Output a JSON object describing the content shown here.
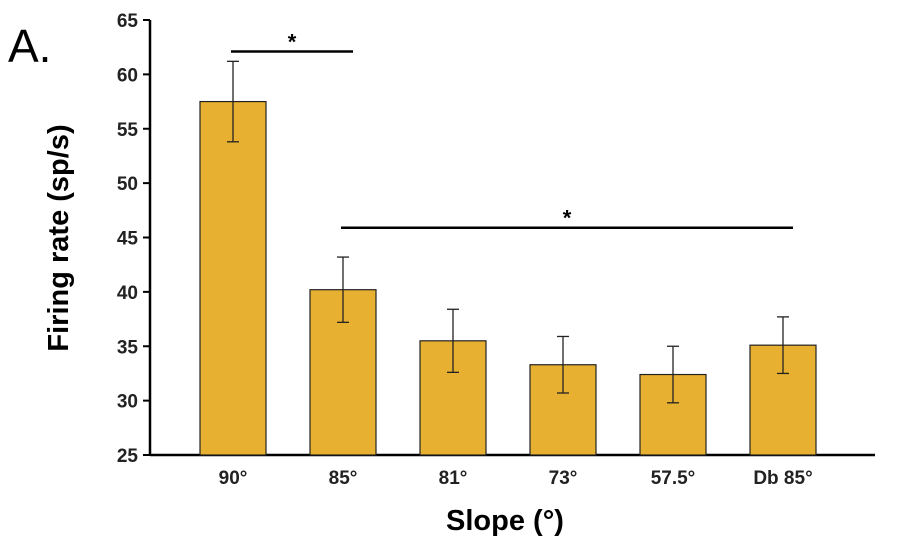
{
  "panel_label": "A.",
  "chart_data": {
    "type": "bar",
    "categories": [
      "90°",
      "85°",
      "81°",
      "73°",
      "57.5°",
      "Db 85°"
    ],
    "values": [
      57.5,
      40.2,
      35.5,
      33.3,
      32.4,
      35.1
    ],
    "error": [
      3.7,
      3.0,
      2.9,
      2.6,
      2.6,
      2.6
    ],
    "xlabel": "Slope (°)",
    "ylabel": "Firing rate (sp/s)",
    "ylim": [
      25,
      65
    ],
    "yticks": [
      25,
      30,
      35,
      40,
      45,
      50,
      55,
      60,
      65
    ],
    "bar_color": "#E8B030",
    "grid": false,
    "significance": [
      {
        "from": 0,
        "to": 1,
        "label": "*",
        "y": 62.1
      },
      {
        "from": 1,
        "to": 5,
        "label": "*",
        "y": 45.9
      }
    ]
  }
}
